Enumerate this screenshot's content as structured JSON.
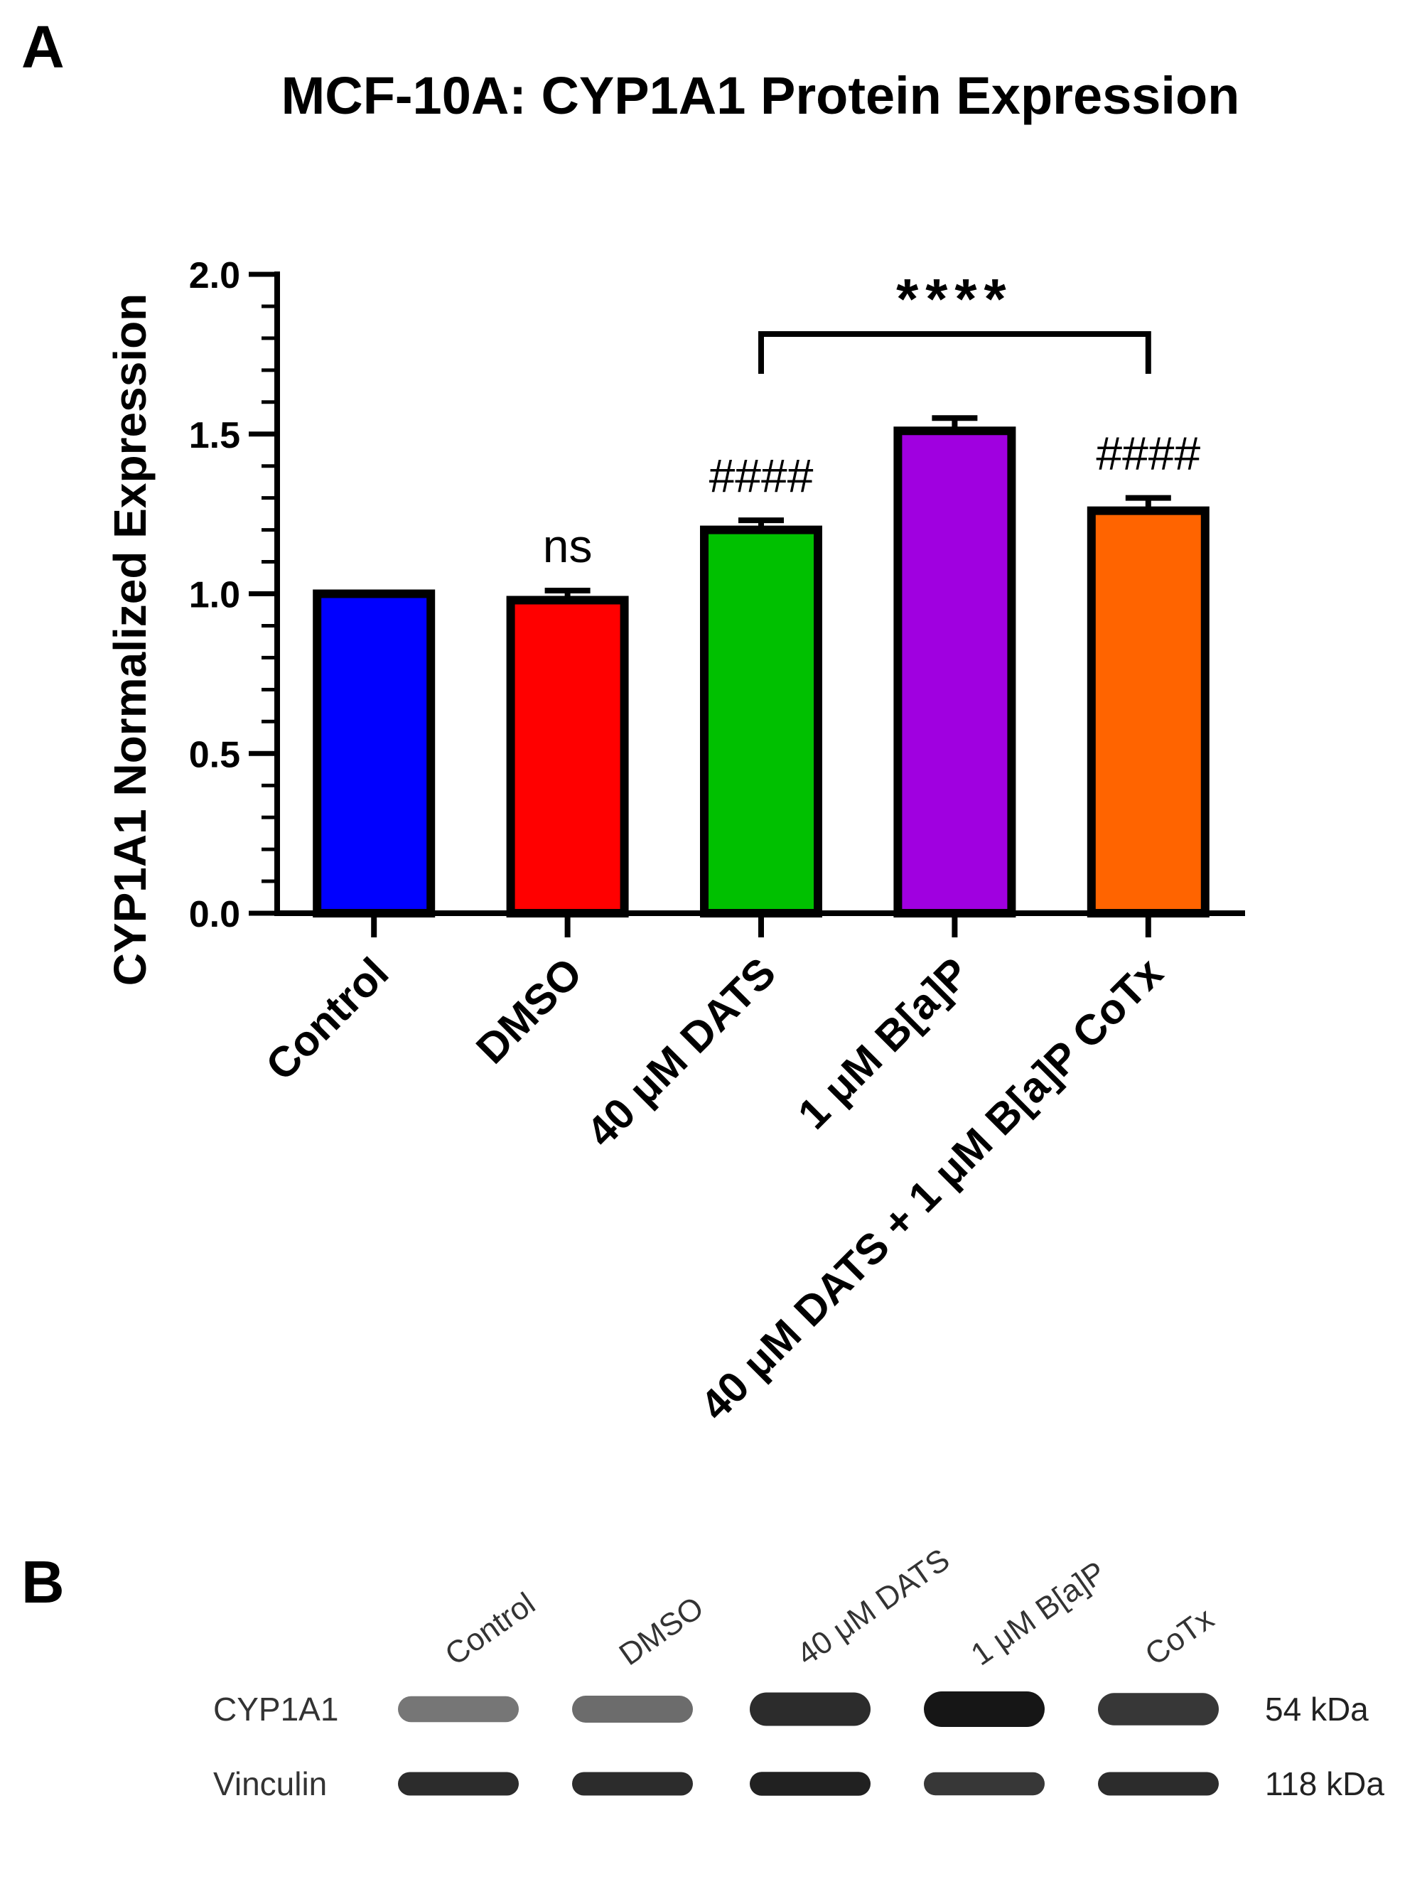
{
  "panel_a_label": "A",
  "panel_b_label": "B",
  "chart_data": {
    "type": "bar",
    "title": "MCF-10A: CYP1A1 Protein Expression",
    "xlabel": "",
    "ylabel": "CYP1A1 Normalized Expression",
    "ylim": [
      0,
      2.0
    ],
    "yticks": [
      "0.0",
      "0.5",
      "1.0",
      "1.5",
      "2.0"
    ],
    "categories": [
      "Control",
      "DMSO",
      "40 μM DATS",
      "1 μM B[a]P",
      "40 μM DATS + 1 μM B[a]P CoTx"
    ],
    "values": [
      1.0,
      0.98,
      1.2,
      1.51,
      1.26
    ],
    "errors": [
      0.0,
      0.03,
      0.03,
      0.04,
      0.04
    ],
    "colors": [
      "#0000ff",
      "#ff0000",
      "#00c000",
      "#a000e0",
      "#ff6400"
    ],
    "annotations": [
      "",
      "ns",
      "####",
      "",
      "####"
    ],
    "significance": {
      "from_index": 2,
      "to_index": 4,
      "label": "****"
    }
  },
  "blot": {
    "lanes": [
      "Control",
      "DMSO",
      "40 μM DATS",
      "1 μM B[a]P",
      "CoTx"
    ],
    "rows": [
      {
        "name": "CYP1A1",
        "kda": "54 kDa",
        "intensity": [
          0.55,
          0.6,
          0.9,
          1.0,
          0.85
        ]
      },
      {
        "name": "Vinculin",
        "kda": "118 kDa",
        "intensity": [
          0.9,
          0.9,
          0.95,
          0.85,
          0.9
        ]
      }
    ]
  }
}
